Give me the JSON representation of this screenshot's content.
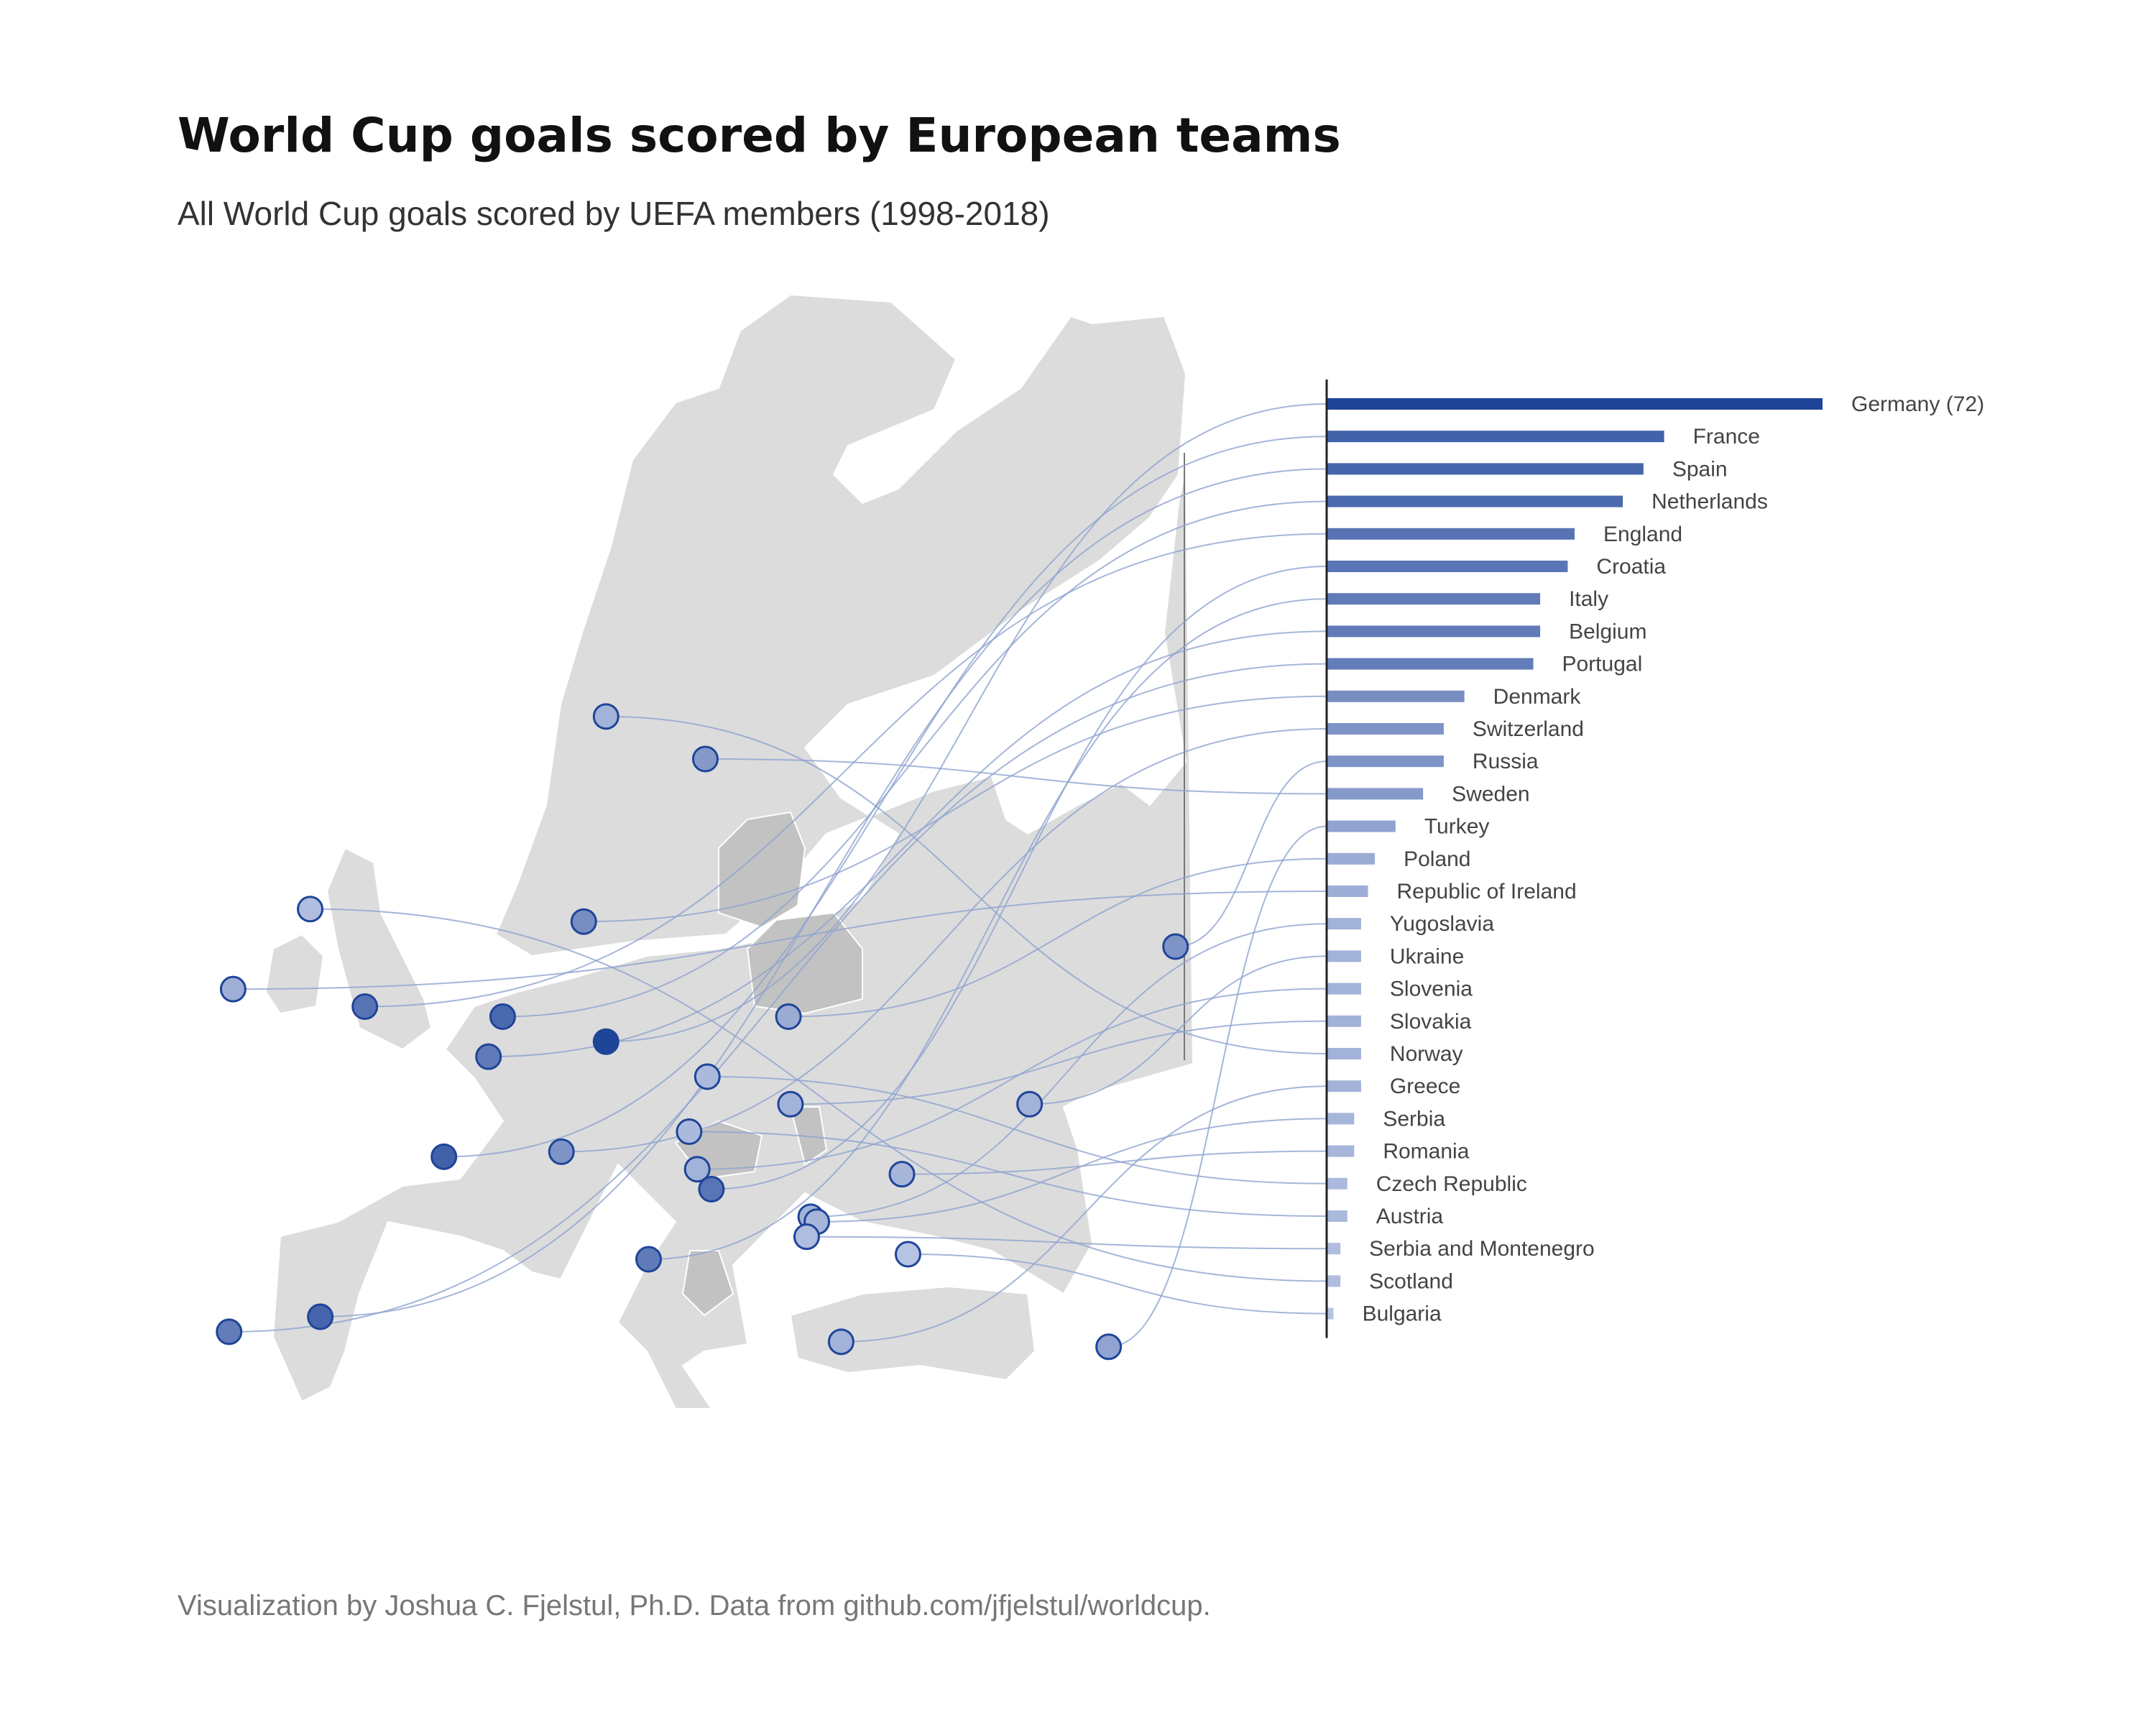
{
  "title": "World Cup goals scored by European teams",
  "subtitle": "All World Cup goals scored by UEFA members (1998-2018)",
  "caption": "Visualization by Joshua C. Fjelstul, Ph.D. Data from github.com/jfjelstul/worldcup.",
  "colors": {
    "map_land": "#dcdcdc",
    "map_highlight": "#c2c2c2",
    "map_border": "#ffffff",
    "bar_high": "#1f4599",
    "bar_low": "#c3cde8",
    "link": "#8fa4cf",
    "axis": "#222222"
  },
  "chart_data": {
    "type": "bar",
    "orientation": "horizontal",
    "title": "World Cup goals scored by European teams",
    "subtitle": "All World Cup goals scored by UEFA members (1998-2018)",
    "max_label_suffix": " (72)",
    "categories": [
      "Germany",
      "France",
      "Spain",
      "Netherlands",
      "England",
      "Croatia",
      "Italy",
      "Belgium",
      "Portugal",
      "Denmark",
      "Switzerland",
      "Russia",
      "Sweden",
      "Turkey",
      "Poland",
      "Republic of Ireland",
      "Yugoslavia",
      "Ukraine",
      "Slovenia",
      "Slovakia",
      "Norway",
      "Greece",
      "Serbia",
      "Romania",
      "Czech Republic",
      "Austria",
      "Serbia and Montenegro",
      "Scotland",
      "Bulgaria"
    ],
    "values": [
      72,
      49,
      46,
      43,
      36,
      35,
      31,
      31,
      30,
      20,
      17,
      17,
      14,
      10,
      7,
      6,
      5,
      5,
      5,
      5,
      5,
      5,
      4,
      4,
      3,
      3,
      2,
      2,
      1
    ],
    "locations": {
      "Germany": [
        10.4,
        51.2
      ],
      "France": [
        2.4,
        46.6
      ],
      "Spain": [
        -3.7,
        40.2
      ],
      "Netherlands": [
        5.3,
        52.2
      ],
      "England": [
        -1.5,
        52.6
      ],
      "Croatia": [
        15.6,
        45.3
      ],
      "Italy": [
        12.5,
        42.5
      ],
      "Belgium": [
        4.6,
        50.6
      ],
      "Portugal": [
        -8.2,
        39.6
      ],
      "Denmark": [
        9.3,
        56.0
      ],
      "Switzerland": [
        8.2,
        46.8
      ],
      "Russia": [
        38.5,
        55.0
      ],
      "Sweden": [
        15.3,
        62.5
      ],
      "Turkey": [
        35.2,
        39.0
      ],
      "Poland": [
        19.4,
        52.2
      ],
      "Republic of Ireland": [
        -8.0,
        53.3
      ],
      "Yugoslavia": [
        20.5,
        44.2
      ],
      "Ukraine": [
        31.3,
        48.7
      ],
      "Slovenia": [
        14.9,
        46.1
      ],
      "Slovakia": [
        19.5,
        48.7
      ],
      "Norway": [
        10.4,
        64.2
      ],
      "Greece": [
        22.0,
        39.2
      ],
      "Serbia": [
        20.8,
        44.0
      ],
      "Romania": [
        25.0,
        45.9
      ],
      "Czech Republic": [
        15.4,
        49.8
      ],
      "Austria": [
        14.5,
        47.6
      ],
      "Serbia and Montenegro": [
        20.3,
        43.4
      ],
      "Scotland": [
        -4.2,
        56.5
      ],
      "Bulgaria": [
        25.3,
        42.7
      ]
    },
    "xlim": [
      0,
      72
    ],
    "xlabel": "",
    "ylabel": "",
    "grid": false,
    "legend": "none"
  }
}
